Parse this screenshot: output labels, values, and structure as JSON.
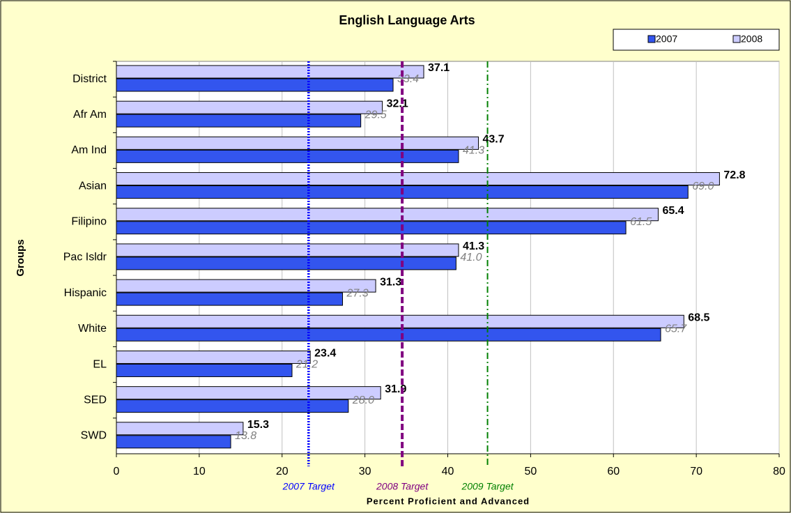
{
  "chart_data": {
    "type": "hbar",
    "title": "English Language Arts",
    "x_label": "Percent Proficient and Advanced",
    "y_label": "Groups",
    "categories": [
      "District",
      "Afr Am",
      "Am Ind",
      "Asian",
      "Filipino",
      "Pac Isldr",
      "Hispanic",
      "White",
      "EL",
      "SED",
      "SWD"
    ],
    "series": [
      {
        "name": "2007",
        "color": "#3355ee",
        "values": [
          33.4,
          29.5,
          41.3,
          69.0,
          61.5,
          41.0,
          27.3,
          65.7,
          21.2,
          28.0,
          13.8
        ],
        "value_labels": [
          "33.4",
          "29.5",
          "41.3",
          "69.0",
          "61.5",
          "41.0",
          "27.3",
          "65.7",
          "21.2",
          "28.0",
          "13.8"
        ]
      },
      {
        "name": "2008",
        "color": "#ccccff",
        "values": [
          37.1,
          32.1,
          43.7,
          72.8,
          65.4,
          41.3,
          31.3,
          68.5,
          23.4,
          31.9,
          15.3
        ],
        "value_labels": [
          "37.1",
          "32.1",
          "43.7",
          "72.8",
          "65.4",
          "41.3",
          "31.3",
          "68.5",
          "23.4",
          "31.9",
          "15.3"
        ]
      }
    ],
    "targets": [
      {
        "label": "2007 Target",
        "value": 23.2,
        "color": "#0000ff",
        "style": "dotted"
      },
      {
        "label": "2008 Target",
        "value": 34.5,
        "color": "#800080",
        "style": "dashed"
      },
      {
        "label": "2009 Target",
        "value": 44.8,
        "color": "#008000",
        "style": "dashdot"
      }
    ],
    "xlim": [
      0,
      80
    ],
    "xticks": [
      0,
      10,
      20,
      30,
      40,
      50,
      60,
      70,
      80
    ],
    "grid": true,
    "legend": "top-right"
  }
}
